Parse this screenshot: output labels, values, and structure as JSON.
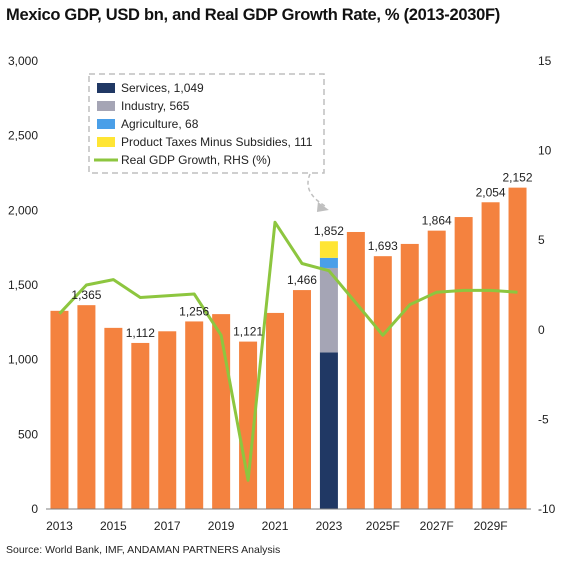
{
  "chart_data": {
    "type": "bar",
    "title": "Mexico GDP, USD bn, and Real GDP Growth Rate, % (2013-2030F)",
    "source": "Source: World Bank, IMF, ANDAMAN PARTNERS Analysis",
    "categories": [
      "2013",
      "2014",
      "2015",
      "2016",
      "2017",
      "2018",
      "2019",
      "2020",
      "2021",
      "2022",
      "2023",
      "2024F",
      "2025F",
      "2026F",
      "2027F",
      "2028F",
      "2029F",
      "2030F"
    ],
    "x_tick_labels": [
      "2013",
      "",
      "2015",
      "",
      "2017",
      "",
      "2019",
      "",
      "2021",
      "",
      "2023",
      "",
      "2025F",
      "",
      "2027F",
      "",
      "2029F",
      ""
    ],
    "gdp_values": [
      1327,
      1365,
      1213,
      1112,
      1190,
      1256,
      1305,
      1121,
      1313,
      1466,
      1852,
      1855,
      1693,
      1775,
      1864,
      1955,
      2054,
      2152
    ],
    "gdp_labels": [
      "",
      "1,365",
      "",
      "1,112",
      "",
      "1,256",
      "",
      "1,121",
      "",
      "1,466",
      "1,852",
      "",
      "1,693",
      "",
      "1,864",
      "",
      "2,054",
      "2,152"
    ],
    "stacked_year": "2023",
    "stacked_components": [
      {
        "name": "Services",
        "value": 1049,
        "color": "#203864"
      },
      {
        "name": "Industry",
        "value": 565,
        "color": "#A5A5B5"
      },
      {
        "name": "Agriculture",
        "value": 68,
        "color": "#4A9FE8"
      },
      {
        "name": "Product Taxes Minus Subsidies",
        "value": 111,
        "color": "#FFE534"
      }
    ],
    "bar_color": "#F4823F",
    "growth_series": {
      "name": "Real GDP Growth, RHS (%)",
      "color": "#8DC63F",
      "values": [
        0.9,
        2.5,
        2.8,
        1.8,
        1.9,
        2.0,
        -0.3,
        -8.4,
        6.0,
        3.7,
        3.3,
        1.5,
        -0.3,
        1.4,
        2.1,
        2.2,
        2.2,
        2.1
      ]
    },
    "y_left": {
      "min": 0,
      "max": 3000,
      "ticks": [
        "0",
        "500",
        "1,000",
        "1,500",
        "2,000",
        "2,500",
        "3,000"
      ]
    },
    "y_right": {
      "min": -10,
      "max": 15,
      "ticks": [
        "-10",
        "-5",
        "0",
        "5",
        "10",
        "15"
      ]
    },
    "legend": {
      "placement": "top-left, dashed box with arrow to 2023 bar",
      "items": [
        {
          "label": "Services, 1,049",
          "color": "#203864",
          "kind": "box"
        },
        {
          "label": "Industry, 565",
          "color": "#A5A5B5",
          "kind": "box"
        },
        {
          "label": "Agriculture, 68",
          "color": "#4A9FE8",
          "kind": "box"
        },
        {
          "label": "Product Taxes Minus Subsidies, 111",
          "color": "#FFE534",
          "kind": "box"
        },
        {
          "label": "Real GDP Growth, RHS (%)",
          "color": "#8DC63F",
          "kind": "line"
        }
      ]
    },
    "grid": false
  }
}
